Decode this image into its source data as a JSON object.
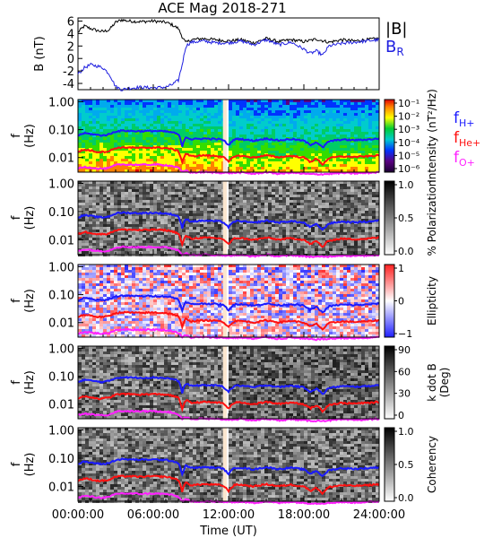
{
  "title": "ACE Mag 2018-271",
  "x_axis": {
    "label": "Time (UT)",
    "ticks": [
      "00:00:00",
      "06:00:00",
      "12:00:00",
      "18:00:00",
      "24:00:00"
    ],
    "range_hours": [
      0,
      24
    ]
  },
  "colors": {
    "B_total": "#000000",
    "B_R": "#1f1fe0",
    "fH": "#1a1aff",
    "fHe": "#ff1010",
    "fO": "#ff20ff",
    "gap": "#fbe6cf"
  },
  "chart_data": [
    {
      "type": "line",
      "name": "B",
      "ylabel": "B (nT)",
      "yticks": [
        "6",
        "4",
        "2",
        "0",
        "-2",
        "-4"
      ],
      "ylim": [
        -5,
        6.5
      ],
      "legend": [
        "|B|",
        "B_R"
      ],
      "legend_display": {
        "total": "|B|",
        "radial": "B",
        "radial_sub": "R"
      },
      "series": [
        {
          "name": "|B|",
          "x": [
            0,
            0.5,
            1,
            1.5,
            2,
            2.5,
            3,
            3.5,
            4,
            5,
            6,
            7,
            7.5,
            8,
            8.3,
            8.6,
            9,
            10,
            11,
            12,
            13,
            14,
            15,
            16,
            17,
            18,
            19,
            20,
            21,
            22,
            23,
            24
          ],
          "y": [
            4.2,
            5.2,
            4.8,
            4.5,
            4.3,
            4.6,
            5.8,
            6.2,
            6.0,
            5.9,
            6.0,
            5.8,
            5.4,
            4.8,
            3.5,
            2.5,
            3.0,
            3.2,
            3.0,
            2.8,
            3.0,
            2.5,
            3.2,
            2.7,
            3.0,
            2.7,
            3.1,
            2.6,
            3.0,
            2.8,
            3.0,
            3.2
          ]
        },
        {
          "name": "B_R",
          "x": [
            0,
            0.5,
            1,
            1.5,
            2,
            2.5,
            3,
            3.5,
            4,
            5,
            6,
            7,
            7.5,
            8,
            8.3,
            8.6,
            9,
            10,
            11,
            12,
            13,
            14,
            15,
            16,
            17,
            18,
            18.5,
            19,
            19.5,
            20,
            21,
            22,
            23,
            24
          ],
          "y": [
            -2.5,
            -1.5,
            -1.0,
            -1.2,
            -1.5,
            -2.5,
            -4.5,
            -5.0,
            -4.8,
            -4.6,
            -4.7,
            -4.6,
            -4.2,
            -3.5,
            -1.0,
            2.0,
            2.6,
            2.8,
            2.5,
            2.5,
            2.8,
            2.2,
            3.0,
            2.2,
            2.6,
            1.5,
            0.8,
            1.2,
            0.5,
            2.0,
            2.4,
            2.6,
            2.8,
            3.0
          ]
        }
      ]
    },
    {
      "type": "heatmap",
      "name": "Intensity",
      "ylabel": "f (Hz)",
      "yticks": [
        "1.00",
        "0.10",
        "0.01"
      ],
      "colorbar": {
        "label": "Intensity (nT²/Hz)",
        "ticks": [
          "10⁻¹",
          "10⁻²",
          "10⁻³",
          "10⁻⁴",
          "10⁻⁵",
          "10⁻⁶"
        ]
      },
      "legend": [
        "f_H+",
        "f_He+",
        "f_O+"
      ],
      "legend_display": [
        {
          "base": "f",
          "sub": "H+"
        },
        {
          "base": "f",
          "sub": "He+"
        },
        {
          "base": "f",
          "sub": "O+"
        }
      ]
    },
    {
      "type": "heatmap",
      "name": "Polarization",
      "ylabel": "f (Hz)",
      "yticks": [
        "1.00",
        "0.10",
        "0.01"
      ],
      "colorbar": {
        "label": "% Polarization",
        "ticks": [
          "1.0",
          "0.5",
          "0.0"
        ]
      }
    },
    {
      "type": "heatmap",
      "name": "Ellipticity",
      "ylabel": "f (Hz)",
      "yticks": [
        "1.00",
        "0.10",
        "0.01"
      ],
      "colorbar": {
        "label": "Ellipticity",
        "ticks": [
          "1",
          "0",
          "−1"
        ]
      }
    },
    {
      "type": "heatmap",
      "name": "k dot B",
      "ylabel": "f (Hz)",
      "yticks": [
        "1.00",
        "0.10",
        "0.01"
      ],
      "colorbar": {
        "label": "k dot B",
        "label2": "(Deg)",
        "ticks": [
          "90",
          "60",
          "30",
          "0"
        ]
      }
    },
    {
      "type": "heatmap",
      "name": "Coherency",
      "ylabel": "f (Hz)",
      "yticks": [
        "1.00",
        "0.10",
        "0.01"
      ],
      "colorbar": {
        "label": "Coherency",
        "ticks": [
          "1.0",
          "0.5",
          "0.0"
        ]
      }
    },
    {
      "type": "line",
      "name": "ion gyrofrequencies (all spectrogram panels)",
      "ylim_hz": [
        0.003,
        1.2
      ],
      "data_gap_hours": [
        11.55,
        11.85
      ],
      "series": [
        {
          "name": "f_H+",
          "x": [
            0,
            0.5,
            1,
            1.5,
            2,
            2.5,
            3,
            3.5,
            4,
            5,
            6,
            7,
            7.5,
            8,
            8.3,
            8.6,
            9,
            10,
            11,
            11.5,
            12,
            12.5,
            13,
            14,
            15,
            16,
            17,
            18,
            18.5,
            19,
            19.5,
            20,
            21,
            22,
            23,
            24
          ],
          "y": [
            0.062,
            0.075,
            0.07,
            0.065,
            0.062,
            0.068,
            0.086,
            0.092,
            0.09,
            0.088,
            0.09,
            0.086,
            0.08,
            0.068,
            0.025,
            0.055,
            0.045,
            0.048,
            0.046,
            0.044,
            0.028,
            0.046,
            0.046,
            0.04,
            0.048,
            0.041,
            0.046,
            0.04,
            0.028,
            0.036,
            0.022,
            0.038,
            0.044,
            0.042,
            0.044,
            0.048
          ]
        },
        {
          "name": "f_He+",
          "x": [
            0,
            0.5,
            1,
            1.5,
            2,
            2.5,
            3,
            3.5,
            4,
            5,
            6,
            7,
            7.5,
            8,
            8.3,
            8.6,
            9,
            10,
            11,
            11.5,
            12,
            12.5,
            13,
            14,
            15,
            16,
            17,
            18,
            18.5,
            19,
            19.5,
            20,
            21,
            22,
            23,
            24
          ],
          "y": [
            0.016,
            0.019,
            0.018,
            0.016,
            0.016,
            0.017,
            0.022,
            0.023,
            0.023,
            0.022,
            0.023,
            0.022,
            0.02,
            0.017,
            0.0065,
            0.014,
            0.011,
            0.012,
            0.0115,
            0.011,
            0.007,
            0.0115,
            0.0115,
            0.01,
            0.012,
            0.0102,
            0.0115,
            0.01,
            0.007,
            0.009,
            0.0055,
            0.0095,
            0.011,
            0.0105,
            0.011,
            0.012
          ]
        },
        {
          "name": "f_O+",
          "x": [
            0,
            0.5,
            1,
            1.5,
            2,
            2.5,
            3,
            3.5,
            4,
            5,
            6,
            7,
            7.5,
            8,
            8.3,
            8.6,
            9,
            10,
            11,
            12,
            13,
            14,
            15,
            16,
            17,
            18,
            19,
            20,
            21,
            22,
            23,
            24
          ],
          "y": [
            0.004,
            0.0046,
            0.0044,
            0.0041,
            0.004,
            0.0042,
            0.0054,
            0.0057,
            0.0056,
            0.0055,
            0.0056,
            0.0054,
            0.005,
            0.0043,
            0.003,
            0.0035,
            0.0029,
            0.003,
            0.0029,
            0.0028,
            0.0029,
            0.0026,
            0.003,
            0.0026,
            0.0029,
            0.0026,
            0.0025,
            0.0026,
            0.0028,
            0.0027,
            0.0028,
            0.003
          ]
        }
      ]
    }
  ]
}
